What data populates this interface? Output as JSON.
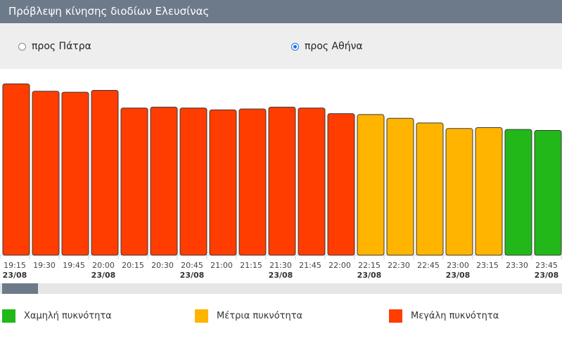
{
  "header": {
    "title": "Πρόβλεψη κίνησης διοδίων Ελευσίνας"
  },
  "directions": [
    {
      "label": "προς Πάτρα",
      "selected": false
    },
    {
      "label": "προς Αθήνα",
      "selected": true
    }
  ],
  "colors": {
    "low": "#22b81a",
    "medium": "#ffb400",
    "high": "#ff3d00",
    "bar_border": "#3a3a3a",
    "scroll_thumb": "#6c7a8a"
  },
  "chart_data": {
    "type": "bar",
    "categories": [
      "19:15",
      "19:30",
      "19:45",
      "20:00",
      "20:15",
      "20:30",
      "20:45",
      "21:00",
      "21:15",
      "21:30",
      "21:45",
      "22:00",
      "22:15",
      "22:30",
      "22:45",
      "23:00",
      "23:15",
      "23:30",
      "23:45"
    ],
    "date_labels": [
      "23/08",
      "",
      "",
      "23/08",
      "",
      "",
      "23/08",
      "",
      "",
      "23/08",
      "",
      "",
      "23/08",
      "",
      "",
      "23/08",
      "",
      "",
      "23/08"
    ],
    "values": [
      92,
      88,
      87.5,
      88.5,
      79,
      79.5,
      79,
      78,
      78.5,
      79.5,
      79,
      76,
      75.5,
      73.5,
      71,
      68,
      68.5,
      67.5,
      67
    ],
    "levels": [
      "high",
      "high",
      "high",
      "high",
      "high",
      "high",
      "high",
      "high",
      "high",
      "high",
      "high",
      "high",
      "medium",
      "medium",
      "medium",
      "medium",
      "medium",
      "low",
      "low"
    ],
    "ylim": [
      0,
      100
    ]
  },
  "legend": [
    {
      "key": "low",
      "label": "Χαμηλή πυκνότητα"
    },
    {
      "key": "medium",
      "label": "Μέτρια πυκνότητα"
    },
    {
      "key": "high",
      "label": "Μεγάλη πυκνότητα"
    }
  ]
}
